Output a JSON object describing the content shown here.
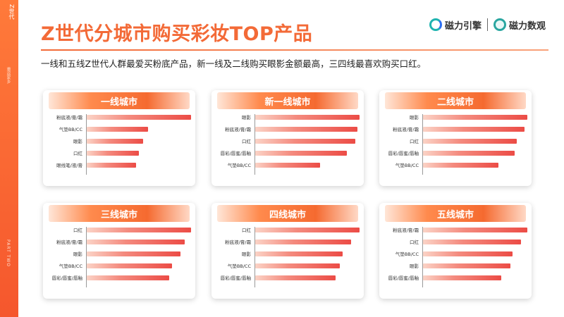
{
  "sidebar": {
    "tag": "Z世代",
    "sub": "重返家乡",
    "part": "PART TWO"
  },
  "header": {
    "title": "Z世代分城市购买彩妆TOP产品",
    "subtitle": "一线和五线Z世代人群最爱买粉底产品，新一线及二线购买眼影金额最高，三四线最喜欢购买口红。",
    "logo1": "磁力引擎",
    "logo2": "磁力数观"
  },
  "colors": {
    "accent": "#f36a37",
    "bar": "#ec4c46"
  },
  "chart_data": [
    {
      "type": "bar",
      "title": "一线城市",
      "xlabel": "",
      "ylabel": "",
      "categories": [
        "粉底液/膏/霜",
        "气垫BB/CC",
        "眼影",
        "口红",
        "眼线笔/液/膏"
      ],
      "values": [
        1.0,
        0.59,
        0.54,
        0.5,
        0.47
      ]
    },
    {
      "type": "bar",
      "title": "新一线城市",
      "xlabel": "",
      "ylabel": "",
      "categories": [
        "眼影",
        "粉底液/膏/霜",
        "口红",
        "唇彩/唇蜜/唇釉",
        "气垫BB/CC"
      ],
      "values": [
        1.0,
        0.98,
        0.96,
        0.88,
        0.62
      ]
    },
    {
      "type": "bar",
      "title": "二线城市",
      "xlabel": "",
      "ylabel": "",
      "categories": [
        "眼影",
        "粉底液/膏/霜",
        "口红",
        "唇彩/唇蜜/唇釉",
        "气垫BB/CC"
      ],
      "values": [
        1.0,
        0.97,
        0.9,
        0.88,
        0.72
      ]
    },
    {
      "type": "bar",
      "title": "三线城市",
      "xlabel": "",
      "ylabel": "",
      "categories": [
        "口红",
        "粉底液/膏/霜",
        "眼影",
        "气垫BB/CC",
        "唇彩/唇蜜/唇釉"
      ],
      "values": [
        1.0,
        0.94,
        0.9,
        0.82,
        0.79
      ]
    },
    {
      "type": "bar",
      "title": "四线城市",
      "xlabel": "",
      "ylabel": "",
      "categories": [
        "口红",
        "粉底液/膏/霜",
        "眼影",
        "气垫BB/CC",
        "唇彩/唇蜜/唇釉"
      ],
      "values": [
        1.0,
        0.92,
        0.84,
        0.81,
        0.77
      ]
    },
    {
      "type": "bar",
      "title": "五线城市",
      "xlabel": "",
      "ylabel": "",
      "categories": [
        "粉底液/膏/霜",
        "口红",
        "气垫BB/CC",
        "眼影",
        "唇彩/唇蜜/唇釉"
      ],
      "values": [
        1.0,
        0.94,
        0.86,
        0.84,
        0.75
      ]
    }
  ]
}
